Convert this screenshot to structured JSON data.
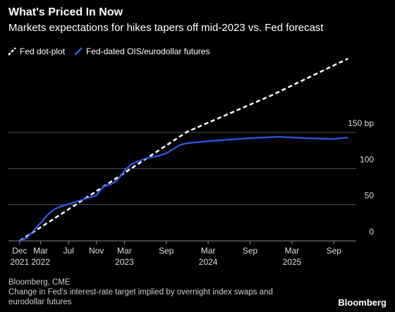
{
  "chart_data": {
    "type": "line",
    "title": "What's Priced In Now",
    "subtitle": "Markets expectations for hikes tapers off mid-2023 vs. Fed forecast",
    "source": "Bloomberg, CME",
    "note": "Change in Fed's interest-rate target implied by overnight index swaps and eurodollar futures",
    "brand": "Bloomberg",
    "xlim": [
      "2021-11",
      "2025-12"
    ],
    "xticks": [
      {
        "value": "2021-12",
        "label": "Dec",
        "year": "2021"
      },
      {
        "value": "2022-03",
        "label": "Mar",
        "year": "2022"
      },
      {
        "value": "2022-07",
        "label": "Jul"
      },
      {
        "value": "2022-11",
        "label": "Nov"
      },
      {
        "value": "2023-03",
        "label": "Mar",
        "year": "2023"
      },
      {
        "value": "2023-09",
        "label": "Sep"
      },
      {
        "value": "2024-03",
        "label": "Mar",
        "year": "2024"
      },
      {
        "value": "2024-09",
        "label": "Sep"
      },
      {
        "value": "2025-03",
        "label": "Mar",
        "year": "2025"
      },
      {
        "value": "2025-09",
        "label": "Sep"
      }
    ],
    "ylim": [
      0,
      265
    ],
    "yticks": [
      0,
      50,
      100,
      {
        "value": 150,
        "label": "150 bp"
      }
    ],
    "grid": true,
    "series": [
      {
        "name": "Fed dot-plot",
        "color": "#ffffff",
        "dashed": true,
        "x": [
          "2021-12",
          "2022-12",
          "2023-12",
          "2024-12",
          "2025-11"
        ],
        "values": [
          0,
          75,
          151,
          201,
          252
        ]
      },
      {
        "name": "Fed-dated OIS/eurodollar futures",
        "color": "#2f5bea",
        "dashed": false,
        "x": [
          "2021-12",
          "2022-01",
          "2022-02",
          "2022-03",
          "2022-04",
          "2022-05",
          "2022-06",
          "2022-07",
          "2022-08",
          "2022-09",
          "2022-10",
          "2022-11",
          "2022-12",
          "2023-01",
          "2023-02",
          "2023-03",
          "2023-04",
          "2023-05",
          "2023-06",
          "2023-07",
          "2023-08",
          "2023-09",
          "2023-10",
          "2023-11",
          "2023-12",
          "2024-03",
          "2024-09",
          "2025-01",
          "2025-05",
          "2025-09",
          "2025-11"
        ],
        "values": [
          0,
          4,
          14,
          25,
          36,
          44,
          48,
          51,
          54,
          57,
          60,
          63,
          75,
          78,
          84,
          97,
          106,
          110,
          114,
          116,
          118,
          121,
          127,
          133,
          135,
          138,
          142,
          144,
          142,
          141,
          143
        ]
      }
    ]
  }
}
